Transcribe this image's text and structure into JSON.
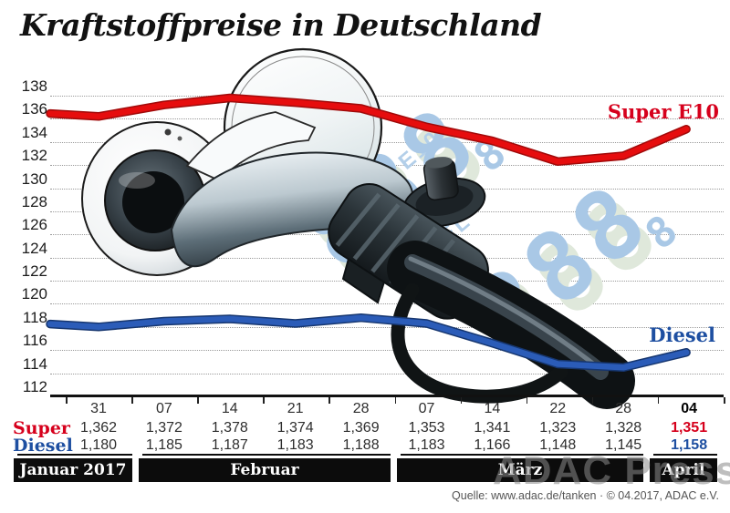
{
  "title": "Kraftstoffpreise in Deutschland",
  "chart_data": {
    "type": "line",
    "title": "Kraftstoffpreise in Deutschland",
    "x_dates": [
      "31",
      "07",
      "14",
      "21",
      "28",
      "07",
      "14",
      "22",
      "28",
      "04"
    ],
    "x_months": [
      "Januar 2017",
      "Februar",
      "Februar",
      "Februar",
      "Februar",
      "März",
      "März",
      "März",
      "März",
      "April"
    ],
    "y_ticks": [
      138,
      136,
      134,
      132,
      130,
      128,
      126,
      124,
      122,
      120,
      118,
      116,
      114,
      112
    ],
    "ylim": [
      112,
      138
    ],
    "grid": "dotted-horizontal",
    "legend_position": "right-inline",
    "series": [
      {
        "name": "Super E10",
        "color": "#e60d0e",
        "edge_color": "#a00a0a",
        "values": [
          136.2,
          137.2,
          137.8,
          137.4,
          136.9,
          135.3,
          134.1,
          132.3,
          132.8,
          135.1
        ]
      },
      {
        "name": "Diesel",
        "color": "#2b5cb8",
        "edge_color": "#16366f",
        "values": [
          118.0,
          118.5,
          118.7,
          118.3,
          118.8,
          118.3,
          116.6,
          114.8,
          114.5,
          115.8
        ]
      }
    ]
  },
  "table": {
    "date_row": [
      "31",
      "07",
      "14",
      "21",
      "28",
      "07",
      "14",
      "22",
      "28",
      "04"
    ],
    "rows": [
      {
        "label": "Super",
        "color": "#d6001c",
        "values": [
          "1,362",
          "1,372",
          "1,378",
          "1,374",
          "1,369",
          "1,353",
          "1,341",
          "1,323",
          "1,328",
          "1,351"
        ]
      },
      {
        "label": "Diesel",
        "color": "#1e4fa1",
        "values": [
          "1,180",
          "1,185",
          "1,187",
          "1,183",
          "1,188",
          "1,183",
          "1,166",
          "1,148",
          "1,145",
          "1,158"
        ]
      }
    ]
  },
  "months": [
    {
      "label": "Januar 2017"
    },
    {
      "label": "Februar"
    },
    {
      "label": "März"
    },
    {
      "label": "April"
    }
  ],
  "series_labels": {
    "super": "Super E10",
    "diesel": "Diesel"
  },
  "decor": {
    "display_label_super": "SUPER E10",
    "display_label_diesel": "DIESEL",
    "display_digits": "888",
    "display_digit_small": "8",
    "digit_color": "#a9c8e6",
    "ghost_color": "#dfe8db"
  },
  "watermark": "ADAC Presse",
  "source": "Quelle: www.adac.de/tanken · © 04.2017, ADAC e.V."
}
